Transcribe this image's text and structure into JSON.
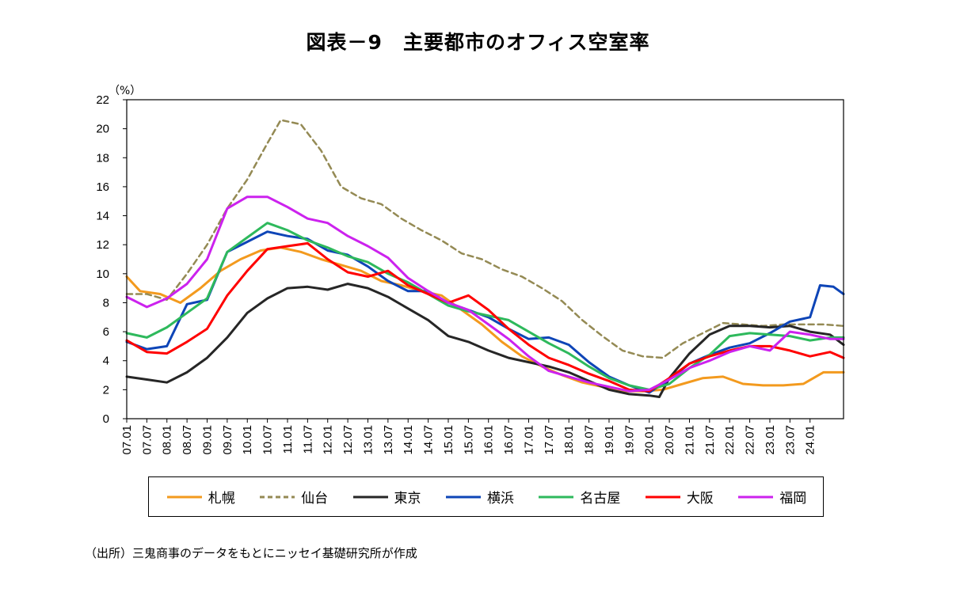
{
  "title": "図表－9　主要都市のオフィス空室率",
  "source": "（出所）三鬼商事のデータをもとにニッセイ基礎研究所が作成",
  "chart_data": {
    "type": "line",
    "title": "図表－9　主要都市のオフィス空室率",
    "ylabel": "（%）",
    "ylim": [
      0,
      22
    ],
    "yticks": [
      0,
      2,
      4,
      6,
      8,
      10,
      12,
      14,
      16,
      18,
      20,
      22
    ],
    "xlim": [
      "2007-01",
      "2024-11"
    ],
    "xtick_labels": [
      "07.01",
      "07.07",
      "08.01",
      "08.07",
      "09.01",
      "09.07",
      "10.01",
      "10.07",
      "11.01",
      "11.07",
      "12.01",
      "12.07",
      "13.01",
      "13.07",
      "14.01",
      "14.07",
      "15.01",
      "15.07",
      "16.01",
      "16.07",
      "17.01",
      "17.07",
      "18.01",
      "18.07",
      "19.01",
      "19.07",
      "20.01",
      "20.07",
      "21.01",
      "21.07",
      "22.01",
      "22.07",
      "23.01",
      "23.07",
      "24.01"
    ],
    "grid": false,
    "legend_position": "bottom",
    "series": [
      {
        "name": "札幌",
        "color": "#F39A1E",
        "style": "solid",
        "points": [
          [
            "2007-01",
            9.8
          ],
          [
            "2007-05",
            8.8
          ],
          [
            "2007-11",
            8.6
          ],
          [
            "2008-05",
            8.0
          ],
          [
            "2008-11",
            9.0
          ],
          [
            "2009-05",
            10.2
          ],
          [
            "2009-11",
            11.0
          ],
          [
            "2010-05",
            11.6
          ],
          [
            "2010-11",
            11.8
          ],
          [
            "2011-05",
            11.5
          ],
          [
            "2011-11",
            11.0
          ],
          [
            "2012-05",
            10.6
          ],
          [
            "2012-11",
            10.2
          ],
          [
            "2013-05",
            9.5
          ],
          [
            "2013-11",
            9.2
          ],
          [
            "2014-05",
            8.8
          ],
          [
            "2014-11",
            8.5
          ],
          [
            "2015-05",
            7.5
          ],
          [
            "2015-11",
            6.5
          ],
          [
            "2016-05",
            5.3
          ],
          [
            "2016-11",
            4.3
          ],
          [
            "2017-05",
            3.6
          ],
          [
            "2017-11",
            3.0
          ],
          [
            "2018-05",
            2.5
          ],
          [
            "2018-11",
            2.2
          ],
          [
            "2019-05",
            1.9
          ],
          [
            "2019-11",
            1.9
          ],
          [
            "2020-05",
            2.0
          ],
          [
            "2020-11",
            2.4
          ],
          [
            "2021-05",
            2.8
          ],
          [
            "2021-11",
            2.9
          ],
          [
            "2022-05",
            2.4
          ],
          [
            "2022-11",
            2.3
          ],
          [
            "2023-05",
            2.3
          ],
          [
            "2023-11",
            2.4
          ],
          [
            "2024-05",
            3.2
          ],
          [
            "2024-11",
            3.2
          ]
        ]
      },
      {
        "name": "仙台",
        "color": "#948A54",
        "style": "dashed",
        "points": [
          [
            "2007-01",
            8.6
          ],
          [
            "2007-07",
            8.6
          ],
          [
            "2008-01",
            8.2
          ],
          [
            "2008-07",
            10.0
          ],
          [
            "2009-01",
            12.0
          ],
          [
            "2009-07",
            14.5
          ],
          [
            "2010-01",
            16.5
          ],
          [
            "2010-07",
            19.0
          ],
          [
            "2010-11",
            20.6
          ],
          [
            "2011-05",
            20.3
          ],
          [
            "2011-11",
            18.5
          ],
          [
            "2012-05",
            16.0
          ],
          [
            "2012-11",
            15.2
          ],
          [
            "2013-05",
            14.8
          ],
          [
            "2013-11",
            13.8
          ],
          [
            "2014-05",
            13.0
          ],
          [
            "2014-11",
            12.3
          ],
          [
            "2015-05",
            11.4
          ],
          [
            "2015-11",
            11.0
          ],
          [
            "2016-05",
            10.3
          ],
          [
            "2016-11",
            9.8
          ],
          [
            "2017-05",
            9.0
          ],
          [
            "2017-11",
            8.1
          ],
          [
            "2018-05",
            6.8
          ],
          [
            "2018-11",
            5.7
          ],
          [
            "2019-05",
            4.7
          ],
          [
            "2019-11",
            4.3
          ],
          [
            "2020-05",
            4.2
          ],
          [
            "2020-11",
            5.2
          ],
          [
            "2021-05",
            5.9
          ],
          [
            "2021-11",
            6.6
          ],
          [
            "2022-05",
            6.5
          ],
          [
            "2022-11",
            6.4
          ],
          [
            "2023-05",
            6.5
          ],
          [
            "2023-11",
            6.5
          ],
          [
            "2024-05",
            6.5
          ],
          [
            "2024-11",
            6.4
          ]
        ]
      },
      {
        "name": "東京",
        "color": "#262626",
        "style": "solid",
        "points": [
          [
            "2007-01",
            2.9
          ],
          [
            "2007-07",
            2.7
          ],
          [
            "2008-01",
            2.5
          ],
          [
            "2008-07",
            3.2
          ],
          [
            "2009-01",
            4.2
          ],
          [
            "2009-07",
            5.6
          ],
          [
            "2010-01",
            7.3
          ],
          [
            "2010-07",
            8.3
          ],
          [
            "2011-01",
            9.0
          ],
          [
            "2011-07",
            9.1
          ],
          [
            "2012-01",
            8.9
          ],
          [
            "2012-07",
            9.3
          ],
          [
            "2013-01",
            9.0
          ],
          [
            "2013-07",
            8.4
          ],
          [
            "2014-01",
            7.6
          ],
          [
            "2014-07",
            6.8
          ],
          [
            "2015-01",
            5.7
          ],
          [
            "2015-07",
            5.3
          ],
          [
            "2016-01",
            4.7
          ],
          [
            "2016-07",
            4.2
          ],
          [
            "2017-01",
            3.9
          ],
          [
            "2017-07",
            3.6
          ],
          [
            "2018-01",
            3.2
          ],
          [
            "2018-07",
            2.6
          ],
          [
            "2019-01",
            2.0
          ],
          [
            "2019-07",
            1.7
          ],
          [
            "2020-01",
            1.6
          ],
          [
            "2020-04",
            1.5
          ],
          [
            "2020-07",
            2.8
          ],
          [
            "2021-01",
            4.5
          ],
          [
            "2021-07",
            5.8
          ],
          [
            "2022-01",
            6.4
          ],
          [
            "2022-07",
            6.4
          ],
          [
            "2023-01",
            6.3
          ],
          [
            "2023-07",
            6.4
          ],
          [
            "2024-01",
            6.0
          ],
          [
            "2024-07",
            5.8
          ],
          [
            "2024-11",
            5.1
          ]
        ]
      },
      {
        "name": "横浜",
        "color": "#0E45B7",
        "style": "solid",
        "points": [
          [
            "2007-01",
            5.3
          ],
          [
            "2007-07",
            4.8
          ],
          [
            "2008-01",
            5.0
          ],
          [
            "2008-07",
            7.9
          ],
          [
            "2009-01",
            8.2
          ],
          [
            "2009-07",
            11.5
          ],
          [
            "2010-01",
            12.2
          ],
          [
            "2010-07",
            12.9
          ],
          [
            "2011-01",
            12.6
          ],
          [
            "2011-07",
            12.4
          ],
          [
            "2012-01",
            11.6
          ],
          [
            "2012-07",
            11.3
          ],
          [
            "2013-01",
            10.5
          ],
          [
            "2013-07",
            9.5
          ],
          [
            "2014-01",
            8.8
          ],
          [
            "2014-07",
            8.8
          ],
          [
            "2015-01",
            8.0
          ],
          [
            "2015-07",
            7.5
          ],
          [
            "2016-01",
            7.0
          ],
          [
            "2016-07",
            6.2
          ],
          [
            "2017-01",
            5.5
          ],
          [
            "2017-07",
            5.6
          ],
          [
            "2018-01",
            5.1
          ],
          [
            "2018-07",
            3.9
          ],
          [
            "2019-01",
            2.9
          ],
          [
            "2019-07",
            2.3
          ],
          [
            "2020-01",
            1.8
          ],
          [
            "2020-07",
            2.7
          ],
          [
            "2021-01",
            3.8
          ],
          [
            "2021-07",
            4.4
          ],
          [
            "2022-01",
            4.9
          ],
          [
            "2022-07",
            5.2
          ],
          [
            "2023-01",
            5.9
          ],
          [
            "2023-07",
            6.7
          ],
          [
            "2024-01",
            7.0
          ],
          [
            "2024-04",
            9.2
          ],
          [
            "2024-08",
            9.1
          ],
          [
            "2024-11",
            8.6
          ]
        ]
      },
      {
        "name": "名古屋",
        "color": "#2EB95C",
        "style": "solid",
        "points": [
          [
            "2007-01",
            5.9
          ],
          [
            "2007-07",
            5.6
          ],
          [
            "2008-01",
            6.3
          ],
          [
            "2008-07",
            7.3
          ],
          [
            "2009-01",
            8.3
          ],
          [
            "2009-07",
            11.5
          ],
          [
            "2010-01",
            12.5
          ],
          [
            "2010-07",
            13.5
          ],
          [
            "2011-01",
            13.0
          ],
          [
            "2011-07",
            12.3
          ],
          [
            "2012-01",
            11.8
          ],
          [
            "2012-07",
            11.2
          ],
          [
            "2013-01",
            10.8
          ],
          [
            "2013-07",
            10.0
          ],
          [
            "2014-01",
            9.4
          ],
          [
            "2014-07",
            8.6
          ],
          [
            "2015-01",
            7.8
          ],
          [
            "2015-07",
            7.4
          ],
          [
            "2016-01",
            7.1
          ],
          [
            "2016-07",
            6.8
          ],
          [
            "2017-01",
            6.0
          ],
          [
            "2017-07",
            5.2
          ],
          [
            "2018-01",
            4.5
          ],
          [
            "2018-07",
            3.6
          ],
          [
            "2019-01",
            2.8
          ],
          [
            "2019-07",
            2.3
          ],
          [
            "2020-01",
            2.0
          ],
          [
            "2020-07",
            2.4
          ],
          [
            "2021-01",
            3.5
          ],
          [
            "2021-07",
            4.4
          ],
          [
            "2022-01",
            5.7
          ],
          [
            "2022-07",
            5.9
          ],
          [
            "2023-01",
            5.8
          ],
          [
            "2023-07",
            5.7
          ],
          [
            "2024-01",
            5.4
          ],
          [
            "2024-07",
            5.6
          ],
          [
            "2024-11",
            5.6
          ]
        ]
      },
      {
        "name": "大阪",
        "color": "#FF0000",
        "style": "solid",
        "points": [
          [
            "2007-01",
            5.4
          ],
          [
            "2007-07",
            4.6
          ],
          [
            "2008-01",
            4.5
          ],
          [
            "2008-07",
            5.3
          ],
          [
            "2009-01",
            6.2
          ],
          [
            "2009-07",
            8.5
          ],
          [
            "2010-01",
            10.2
          ],
          [
            "2010-07",
            11.7
          ],
          [
            "2011-01",
            11.9
          ],
          [
            "2011-07",
            12.1
          ],
          [
            "2012-01",
            11.0
          ],
          [
            "2012-07",
            10.1
          ],
          [
            "2013-01",
            9.8
          ],
          [
            "2013-07",
            10.2
          ],
          [
            "2014-01",
            9.2
          ],
          [
            "2014-07",
            8.6
          ],
          [
            "2015-01",
            8.0
          ],
          [
            "2015-07",
            8.5
          ],
          [
            "2016-01",
            7.5
          ],
          [
            "2016-07",
            6.2
          ],
          [
            "2017-01",
            5.1
          ],
          [
            "2017-07",
            4.2
          ],
          [
            "2018-01",
            3.7
          ],
          [
            "2018-07",
            3.1
          ],
          [
            "2019-01",
            2.6
          ],
          [
            "2019-07",
            2.0
          ],
          [
            "2020-01",
            1.9
          ],
          [
            "2020-07",
            2.8
          ],
          [
            "2021-01",
            3.8
          ],
          [
            "2021-07",
            4.3
          ],
          [
            "2022-01",
            4.7
          ],
          [
            "2022-07",
            5.0
          ],
          [
            "2023-01",
            5.0
          ],
          [
            "2023-07",
            4.7
          ],
          [
            "2024-01",
            4.3
          ],
          [
            "2024-07",
            4.6
          ],
          [
            "2024-11",
            4.2
          ]
        ]
      },
      {
        "name": "福岡",
        "color": "#CC22EE",
        "style": "solid",
        "points": [
          [
            "2007-01",
            8.4
          ],
          [
            "2007-07",
            7.7
          ],
          [
            "2008-01",
            8.3
          ],
          [
            "2008-07",
            9.3
          ],
          [
            "2009-01",
            11.0
          ],
          [
            "2009-07",
            14.5
          ],
          [
            "2010-01",
            15.3
          ],
          [
            "2010-07",
            15.3
          ],
          [
            "2011-01",
            14.6
          ],
          [
            "2011-07",
            13.8
          ],
          [
            "2012-01",
            13.5
          ],
          [
            "2012-07",
            12.6
          ],
          [
            "2013-01",
            11.9
          ],
          [
            "2013-07",
            11.1
          ],
          [
            "2014-01",
            9.7
          ],
          [
            "2014-07",
            8.8
          ],
          [
            "2015-01",
            8.0
          ],
          [
            "2015-07",
            7.5
          ],
          [
            "2016-01",
            6.5
          ],
          [
            "2016-07",
            5.5
          ],
          [
            "2017-01",
            4.3
          ],
          [
            "2017-07",
            3.3
          ],
          [
            "2018-01",
            2.9
          ],
          [
            "2018-07",
            2.5
          ],
          [
            "2019-01",
            2.2
          ],
          [
            "2019-07",
            1.9
          ],
          [
            "2020-01",
            2.0
          ],
          [
            "2020-07",
            2.7
          ],
          [
            "2021-01",
            3.5
          ],
          [
            "2021-07",
            4.0
          ],
          [
            "2022-01",
            4.6
          ],
          [
            "2022-07",
            5.0
          ],
          [
            "2023-01",
            4.7
          ],
          [
            "2023-07",
            6.0
          ],
          [
            "2024-01",
            5.8
          ],
          [
            "2024-07",
            5.5
          ],
          [
            "2024-11",
            5.5
          ]
        ]
      }
    ]
  }
}
